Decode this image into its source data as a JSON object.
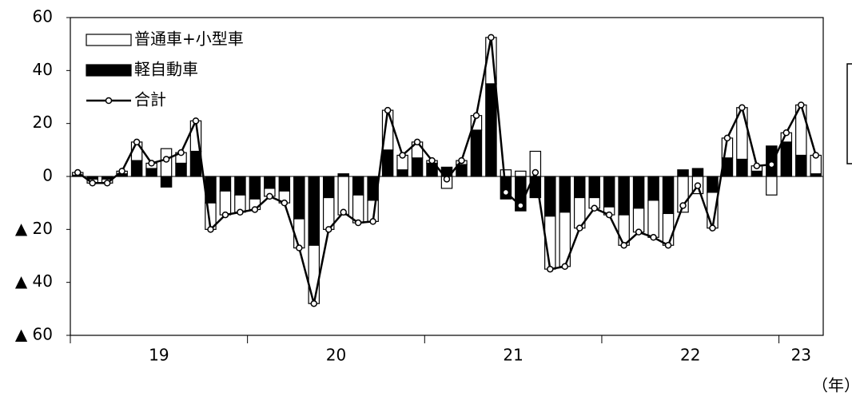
{
  "chart_data": {
    "type": "bar",
    "categories": [
      null,
      null,
      null,
      null,
      null,
      null,
      null,
      null,
      null,
      null,
      null,
      null,
      null,
      null,
      null,
      null,
      null,
      null,
      null,
      null,
      null,
      null,
      null,
      null,
      null,
      null,
      null,
      null,
      null,
      null,
      null,
      null,
      null,
      null,
      null,
      null,
      null,
      null,
      null,
      null,
      null,
      null,
      null,
      null,
      null,
      null,
      null,
      null,
      null,
      null,
      null
    ],
    "year_labels": [
      "19",
      "20",
      "21",
      "22",
      "23"
    ],
    "x_unit_label": "（年）",
    "series": [
      {
        "name": "普通車+小型車",
        "type": "bar",
        "color": "#ffffff",
        "values": [
          1,
          -1.5,
          -1.5,
          1,
          7,
          2,
          10.5,
          4,
          11.5,
          -10,
          -9,
          -6.5,
          -4,
          -3,
          -4.5,
          -11,
          -22,
          -12,
          -14.5,
          -10.5,
          -8,
          15,
          5.5,
          6,
          1,
          -4.5,
          1.5,
          5.5,
          17.5,
          2.5,
          2,
          9.5,
          -20,
          -20.5,
          -11.5,
          -4,
          -3,
          -11.5,
          -9,
          -14,
          -12,
          -13.5,
          -6.5,
          -13.5,
          7.5,
          19.5,
          2,
          -7,
          3.5,
          19,
          7
        ]
      },
      {
        "name": "軽自動車",
        "type": "bar",
        "color": "#000000",
        "values": [
          0.5,
          -1,
          -1,
          1,
          6,
          3,
          -4,
          5,
          9.5,
          -10,
          -5.5,
          -7,
          -8.5,
          -4.5,
          -5.5,
          -16,
          -26,
          -8,
          1,
          -7,
          -9,
          10,
          2.5,
          7,
          5,
          3.5,
          4.5,
          17.5,
          35,
          -8.5,
          -13,
          -8,
          -15,
          -13.5,
          -8,
          -8,
          -11.5,
          -14.5,
          -12,
          -9,
          -14,
          2.5,
          3,
          -6,
          7,
          6.5,
          2,
          11.5,
          13,
          8,
          1
        ]
      },
      {
        "name": "合計",
        "type": "line",
        "color": "#000000",
        "values": [
          1.5,
          -2.5,
          -2.5,
          2,
          13,
          5,
          6.5,
          9,
          21,
          -20,
          -14.5,
          -13.5,
          -12.5,
          -7.5,
          -10,
          -27,
          -48,
          -20,
          -13.5,
          -17.5,
          -17,
          25,
          8,
          13,
          6,
          -1,
          6,
          23,
          52.5,
          -6,
          -11,
          1.5,
          -35,
          -34,
          -19.5,
          -12,
          -14.5,
          -26,
          -21,
          -23,
          -26,
          -11,
          -3.5,
          -19.5,
          14.5,
          26,
          4,
          4.5,
          16.5,
          27,
          8
        ]
      }
    ],
    "ylim": [
      -60,
      60
    ],
    "yticks": [
      {
        "value": -60,
        "label": "▲ 60"
      },
      {
        "value": -40,
        "label": "▲ 40"
      },
      {
        "value": -20,
        "label": "▲ 20"
      },
      0,
      20,
      40,
      60
    ],
    "legend": "upper left"
  }
}
